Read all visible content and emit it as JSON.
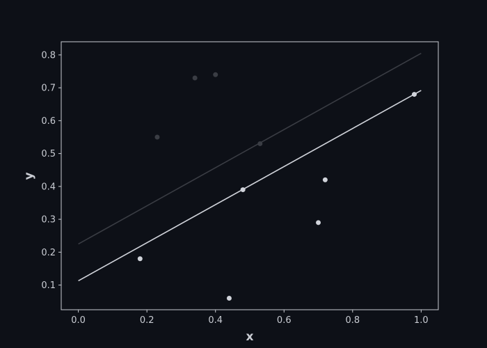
{
  "chart_data": {
    "type": "scatter",
    "title": "",
    "xlabel": "x",
    "ylabel": "y",
    "xlim": [
      -0.05,
      1.05
    ],
    "ylim": [
      0.025,
      0.84
    ],
    "x_ticks": [
      0.0,
      0.2,
      0.4,
      0.6,
      0.8,
      1.0
    ],
    "x_tick_labels": [
      "0.0",
      "0.2",
      "0.4",
      "0.6",
      "0.8",
      "1.0"
    ],
    "y_ticks": [
      0.1,
      0.2,
      0.3,
      0.4,
      0.5,
      0.6,
      0.7,
      0.8
    ],
    "y_tick_labels": [
      "0.1",
      "0.2",
      "0.3",
      "0.4",
      "0.5",
      "0.6",
      "0.7",
      "0.8"
    ],
    "grid": false,
    "legend": false,
    "colors": {
      "background": "#0d1017",
      "axes": "#c9ccd3",
      "series_light": "#d0d3da",
      "series_dim": "#3a3d44"
    },
    "series": [
      {
        "color": "#3a3d44",
        "points": [
          {
            "x": 0.23,
            "y": 0.55
          },
          {
            "x": 0.34,
            "y": 0.73
          },
          {
            "x": 0.4,
            "y": 0.74
          },
          {
            "x": 0.53,
            "y": 0.53
          }
        ],
        "fit_line": {
          "x": [
            0.0,
            1.0
          ],
          "y": [
            0.225,
            0.805
          ]
        }
      },
      {
        "color": "#d0d3da",
        "points": [
          {
            "x": 0.18,
            "y": 0.18
          },
          {
            "x": 0.44,
            "y": 0.06
          },
          {
            "x": 0.48,
            "y": 0.39
          },
          {
            "x": 0.7,
            "y": 0.29
          },
          {
            "x": 0.72,
            "y": 0.42
          },
          {
            "x": 0.98,
            "y": 0.68
          }
        ],
        "fit_line": {
          "x": [
            0.0,
            1.0
          ],
          "y": [
            0.113,
            0.692
          ]
        }
      }
    ]
  }
}
